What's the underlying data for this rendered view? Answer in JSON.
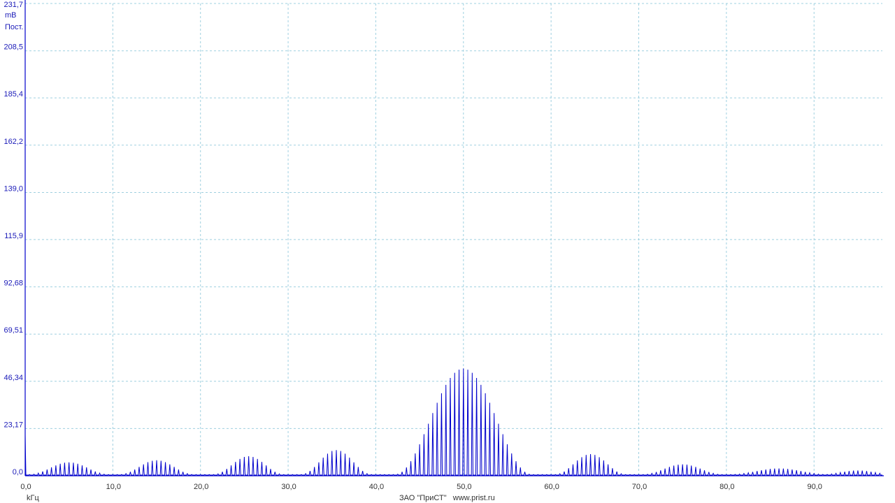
{
  "chart_data": {
    "type": "line",
    "title": "",
    "xlabel": "kГц",
    "ylabel": "mВ",
    "y_mode_label": "Пост.",
    "footer": "ЗАО \"ПриСТ\"   www.prist.ru",
    "xlim": [
      0,
      97.8
    ],
    "ylim": [
      0,
      231.7
    ],
    "x_ticks": [
      0,
      10,
      20,
      30,
      40,
      50,
      60,
      70,
      80,
      90
    ],
    "x_tick_labels": [
      "0,0",
      "10,0",
      "20,0",
      "30,0",
      "40,0",
      "50,0",
      "60,0",
      "70,0",
      "80,0",
      "90,0"
    ],
    "y_ticks": [
      0,
      23.17,
      46.34,
      69.51,
      92.68,
      115.9,
      139.0,
      162.2,
      185.4,
      208.5,
      231.7
    ],
    "y_tick_labels": [
      "0,0",
      "23,17",
      "46,34",
      "69,51",
      "92,68",
      "115,9",
      "139,0",
      "162,2",
      "185,4",
      "208,5",
      "231,7"
    ],
    "grid": true,
    "line_color": "#0000cc",
    "grid_color": "#9fd0e0",
    "series": [
      {
        "peak_spacing_khz": 0.5,
        "dc_spike_mv": 20,
        "lobes": [
          {
            "center_khz": 5.0,
            "peak_mv": 6,
            "half_width_khz": 4.5
          },
          {
            "center_khz": 15.0,
            "peak_mv": 7,
            "half_width_khz": 4.2
          },
          {
            "center_khz": 25.5,
            "peak_mv": 9,
            "half_width_khz": 4.0
          },
          {
            "center_khz": 35.5,
            "peak_mv": 12,
            "half_width_khz": 4.0
          },
          {
            "center_khz": 50.0,
            "peak_mv": 52,
            "half_width_khz": 7.8
          },
          {
            "center_khz": 64.5,
            "peak_mv": 10,
            "half_width_khz": 4.0
          },
          {
            "center_khz": 75.0,
            "peak_mv": 5,
            "half_width_khz": 4.5
          },
          {
            "center_khz": 86.0,
            "peak_mv": 3,
            "half_width_khz": 5.5
          },
          {
            "center_khz": 95.0,
            "peak_mv": 2,
            "half_width_khz": 4.0
          }
        ]
      }
    ]
  }
}
